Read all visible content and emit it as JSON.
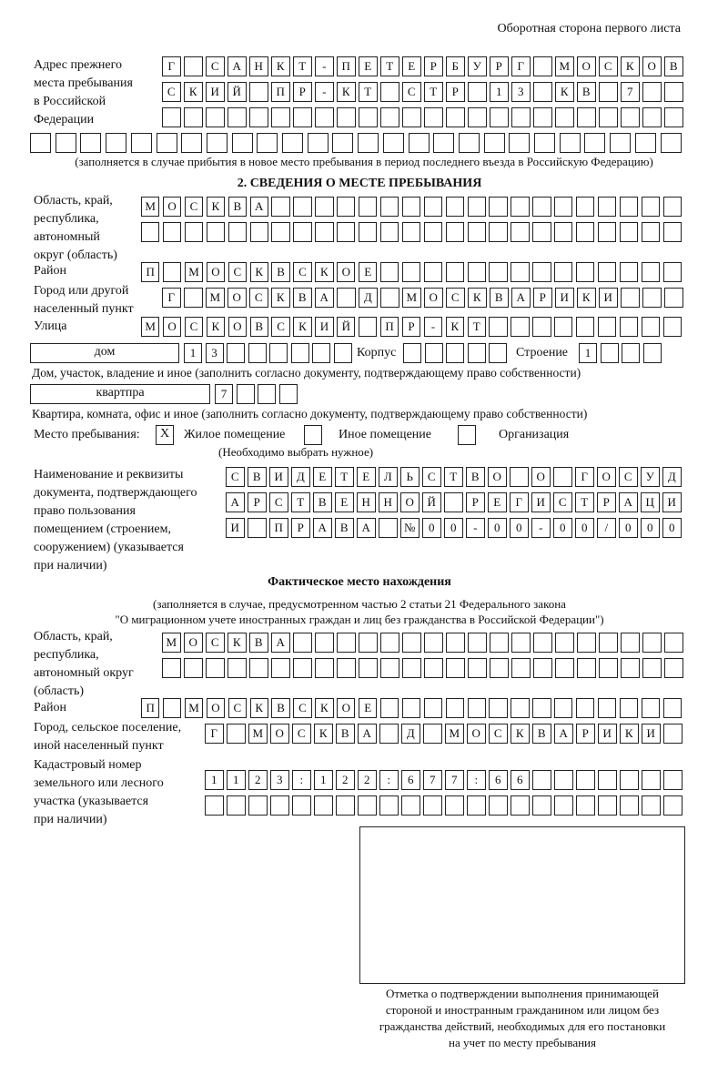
{
  "header": "Оборотная сторона первого листа",
  "prev_address": {
    "label": [
      "Адрес прежнего",
      "места пребывания",
      "в Российской",
      "Федерации"
    ],
    "rows": [
      [
        "Г",
        "",
        "С",
        "А",
        "Н",
        "К",
        "Т",
        "-",
        "П",
        "Е",
        "Т",
        "Е",
        "Р",
        "Б",
        "У",
        "Р",
        "Г",
        "",
        "М",
        "О",
        "С",
        "К",
        "О",
        "В"
      ],
      [
        "С",
        "К",
        "И",
        "Й",
        "",
        "П",
        "Р",
        "-",
        "К",
        "Т",
        "",
        "С",
        "Т",
        "Р",
        "",
        "1",
        "3",
        "",
        "К",
        "В",
        "",
        "7",
        "",
        ""
      ],
      [
        "",
        "",
        "",
        "",
        "",
        "",
        "",
        "",
        "",
        "",
        "",
        "",
        "",
        "",
        "",
        "",
        "",
        "",
        "",
        "",
        "",
        "",
        "",
        ""
      ],
      [
        "",
        "",
        "",
        "",
        "",
        "",
        "",
        "",
        "",
        "",
        "",
        "",
        "",
        "",
        "",
        "",
        "",
        "",
        "",
        "",
        "",
        "",
        "",
        "",
        "",
        ""
      ]
    ],
    "note": "(заполняется в случае прибытия в новое место пребывания в период последнего въезда в Российскую Федерацию)"
  },
  "section2": {
    "title": "2. СВЕДЕНИЯ О МЕСТЕ ПРЕБЫВАНИЯ",
    "region_label": [
      "Область, край,",
      "республика,",
      "автономный",
      "округ (область)"
    ],
    "region_rows": [
      [
        "М",
        "О",
        "С",
        "К",
        "В",
        "А",
        "",
        "",
        "",
        "",
        "",
        "",
        "",
        "",
        "",
        "",
        "",
        "",
        "",
        "",
        "",
        "",
        "",
        "",
        ""
      ],
      [
        "",
        "",
        "",
        "",
        "",
        "",
        "",
        "",
        "",
        "",
        "",
        "",
        "",
        "",
        "",
        "",
        "",
        "",
        "",
        "",
        "",
        "",
        "",
        "",
        ""
      ]
    ],
    "district_label": "Район",
    "district": [
      "П",
      "",
      "М",
      "О",
      "С",
      "К",
      "В",
      "С",
      "К",
      "О",
      "Е",
      "",
      "",
      "",
      "",
      "",
      "",
      "",
      "",
      "",
      "",
      "",
      "",
      "",
      ""
    ],
    "city_label": [
      "Город или другой",
      "населенный пункт"
    ],
    "city": [
      "Г",
      "",
      "М",
      "О",
      "С",
      "К",
      "В",
      "А",
      "",
      "Д",
      "",
      "М",
      "О",
      "С",
      "К",
      "В",
      "А",
      "Р",
      "И",
      "К",
      "И",
      "",
      "",
      ""
    ],
    "street_label": "Улица",
    "street": [
      "М",
      "О",
      "С",
      "К",
      "О",
      "В",
      "С",
      "К",
      "И",
      "Й",
      "",
      "П",
      "Р",
      "-",
      "К",
      "Т",
      "",
      "",
      "",
      "",
      "",
      "",
      "",
      "",
      ""
    ],
    "house_type": "дом",
    "house": [
      "1",
      "3",
      "",
      "",
      "",
      "",
      "",
      ""
    ],
    "korpus_label": "Корпус",
    "korpus": [
      "",
      "",
      "",
      "",
      ""
    ],
    "stroenie_label": "Строение",
    "stroenie": [
      "1",
      "",
      "",
      ""
    ],
    "house_caption": "Дом, участок, владение и иное (заполнить согласно документу, подтверждающему право собственности)",
    "flat_type": "квартпра",
    "flat": [
      "7",
      "",
      "",
      ""
    ],
    "flat_caption": "Квартира, комната, офис и иное (заполнить согласно документу, подтверждающему право собственности)",
    "stay_label": "Место пребывания:",
    "stay_options": [
      {
        "label": "Жилое помещение",
        "mark": "X"
      },
      {
        "label": "Иное помещение",
        "mark": ""
      },
      {
        "label": "Организация",
        "mark": ""
      }
    ],
    "stay_hint": "(Необходимо выбрать нужное)",
    "doc_label": [
      "Наименование и реквизиты",
      "документа, подтверждающего",
      "право пользования",
      "помещением (строением,",
      "сооружением) (указывается",
      "при наличии)"
    ],
    "doc_rows": [
      [
        "С",
        "В",
        "И",
        "Д",
        "Е",
        "Т",
        "Е",
        "Л",
        "Ь",
        "С",
        "Т",
        "В",
        "О",
        "",
        "О",
        "",
        "Г",
        "О",
        "С",
        "У",
        "Д"
      ],
      [
        "А",
        "Р",
        "С",
        "Т",
        "В",
        "Е",
        "Н",
        "Н",
        "О",
        "Й",
        "",
        "Р",
        "Е",
        "Г",
        "И",
        "С",
        "Т",
        "Р",
        "А",
        "Ц",
        "И"
      ],
      [
        "И",
        "",
        "П",
        "Р",
        "А",
        "В",
        "А",
        "",
        "№",
        "0",
        "0",
        "-",
        "0",
        "0",
        "-",
        "0",
        "0",
        "/",
        "0",
        "0",
        "0"
      ]
    ]
  },
  "actual": {
    "title": "Фактическое место нахождения",
    "subtitle": [
      "(заполняется в случае, предусмотренном частью 2 статьи 21 Федерального закона",
      "\"О миграционном учете иностранных граждан и лиц без гражданства в Российской Федерации\")"
    ],
    "region_label": [
      "Область, край,",
      "республика,",
      "автономный округ",
      "(область)"
    ],
    "region_rows": [
      [
        "М",
        "О",
        "С",
        "К",
        "В",
        "А",
        "",
        "",
        "",
        "",
        "",
        "",
        "",
        "",
        "",
        "",
        "",
        "",
        "",
        "",
        "",
        "",
        "",
        ""
      ],
      [
        "",
        "",
        "",
        "",
        "",
        "",
        "",
        "",
        "",
        "",
        "",
        "",
        "",
        "",
        "",
        "",
        "",
        "",
        "",
        "",
        "",
        "",
        "",
        ""
      ]
    ],
    "district_label": "Район",
    "district": [
      "П",
      "",
      "М",
      "О",
      "С",
      "К",
      "В",
      "С",
      "К",
      "О",
      "Е",
      "",
      "",
      "",
      "",
      "",
      "",
      "",
      "",
      "",
      "",
      "",
      "",
      "",
      ""
    ],
    "city_label": [
      "Город, сельское поселение,",
      "иной населенный пункт"
    ],
    "city": [
      "Г",
      "",
      "М",
      "О",
      "С",
      "К",
      "В",
      "А",
      "",
      "Д",
      "",
      "М",
      "О",
      "С",
      "К",
      "В",
      "А",
      "Р",
      "И",
      "К",
      "И",
      ""
    ],
    "cadastral_label": [
      "Кадастровый номер",
      "земельного или лесного",
      "участка (указывается",
      "при наличии)"
    ],
    "cadastral_rows": [
      [
        "1",
        "1",
        "2",
        "3",
        ":",
        "1",
        "2",
        "2",
        ":",
        "6",
        "7",
        "7",
        ":",
        "6",
        "6",
        "",
        "",
        "",
        "",
        "",
        "",
        ""
      ],
      [
        "",
        "",
        "",
        "",
        "",
        "",
        "",
        "",
        "",
        "",
        "",
        "",
        "",
        "",
        "",
        "",
        "",
        "",
        "",
        "",
        "",
        ""
      ]
    ],
    "stamp_caption": [
      "Отметка о подтверждении выполнения принимающей",
      "стороной и иностранным гражданином или лицом без",
      "гражданства действий, необходимых для его постановки",
      "на учет по месту пребывания"
    ]
  }
}
